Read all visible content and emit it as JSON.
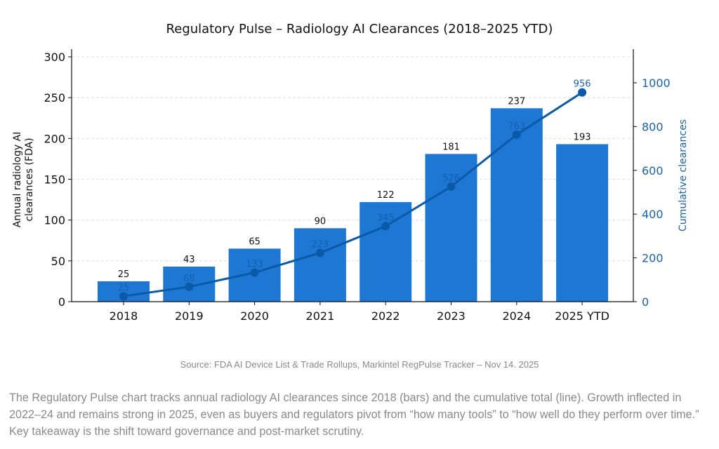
{
  "chart_data": {
    "type": "bar",
    "title": "Regulatory Pulse – Radiology AI Clearances (2018–2025 YTD)",
    "categories": [
      "2018",
      "2019",
      "2020",
      "2021",
      "2022",
      "2023",
      "2024",
      "2025 YTD"
    ],
    "series": [
      {
        "name": "Annual radiology AI clearances (FDA)",
        "type": "bar",
        "axis": "left",
        "color": "#1f77d4",
        "values": [
          25,
          43,
          65,
          90,
          122,
          181,
          237,
          193
        ]
      },
      {
        "name": "Cumulative clearances",
        "type": "line",
        "axis": "right",
        "color": "#0b5aa8",
        "values": [
          25,
          68,
          133,
          223,
          345,
          526,
          763,
          956
        ]
      }
    ],
    "ylabel": "Annual radiology AI clearances (FDA)",
    "y2label": "Cumulative clearances",
    "ylim": [
      0,
      300
    ],
    "y2lim": [
      0,
      1120
    ],
    "yticks": [
      "0",
      "50",
      "100",
      "150",
      "200",
      "250",
      "300"
    ],
    "y2ticks": [
      "0",
      "200",
      "400",
      "600",
      "800",
      "1000"
    ],
    "grid": true,
    "legend": "none"
  },
  "source": "Source: FDA AI Device List & Trade Rollups, Markintel RegPulse Tracker – Nov 14. 2025",
  "caption": "The Regulatory Pulse chart tracks annual radiology AI clearances since 2018 (bars) and the cumulative total (line). Growth inflected in 2022–24 and remains strong in 2025, even as buyers and regulators pivot from “how many tools” to “how well do they perform over time.” Key takeaway is the shift toward governance and post-market scrutiny."
}
